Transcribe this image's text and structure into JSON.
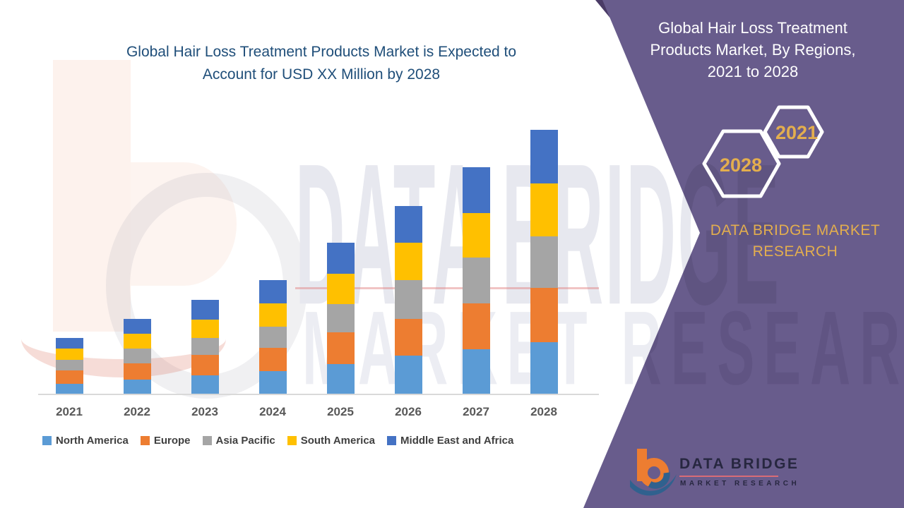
{
  "main_title": {
    "line1": "Global Hair Loss Treatment Products Market is Expected to",
    "line2": "Account for USD XX Million by 2028"
  },
  "side_panel": {
    "title_line1": "Global Hair Loss Treatment",
    "title_line2": "Products Market, By Regions,",
    "title_line3": "2021 to 2028",
    "badge_year_top": "2021",
    "badge_year_bottom": "2028",
    "brand_line1": "DATA BRIDGE MARKET",
    "brand_line2": "RESEARCH",
    "colors": {
      "panel": "#685C8C",
      "panel_dark": "#4A3B66",
      "gold": "#E3AE4E",
      "hex_border": "#FFFFFF"
    }
  },
  "logo": {
    "name": "DATA BRIDGE",
    "subtitle": "MARKET RESEARCH"
  },
  "watermark": {
    "line1": "DATA BRIDGE",
    "line2": "MARKET RESEARCH"
  },
  "chart_data": {
    "type": "bar",
    "stacked": true,
    "title": "Global Hair Loss Treatment Products Market is Expected to Account for USD XX Million by 2028",
    "xlabel": "",
    "ylabel": "",
    "y_axis_visible": false,
    "legend_position": "bottom",
    "value_note": "estimated relative units read from bar pixel heights; axis unlabeled (USD XX Million)",
    "ylim": [
      0,
      400
    ],
    "categories": [
      "2021",
      "2022",
      "2023",
      "2024",
      "2025",
      "2026",
      "2027",
      "2028"
    ],
    "series": [
      {
        "name": "North America",
        "color": "#5B9BD5",
        "values": [
          15,
          21,
          27,
          33,
          43,
          55,
          64,
          74
        ]
      },
      {
        "name": "Europe",
        "color": "#ED7D31",
        "values": [
          19,
          23,
          29,
          33,
          45,
          52,
          65,
          77
        ]
      },
      {
        "name": "Asia Pacific",
        "color": "#A5A5A5",
        "values": [
          15,
          21,
          24,
          30,
          40,
          55,
          65,
          73
        ]
      },
      {
        "name": "South America",
        "color": "#FFC000",
        "values": [
          16,
          21,
          26,
          33,
          43,
          53,
          63,
          75
        ]
      },
      {
        "name": "Middle East and Africa",
        "color": "#4472C4",
        "values": [
          15,
          21,
          28,
          33,
          44,
          52,
          65,
          76
        ]
      }
    ]
  }
}
